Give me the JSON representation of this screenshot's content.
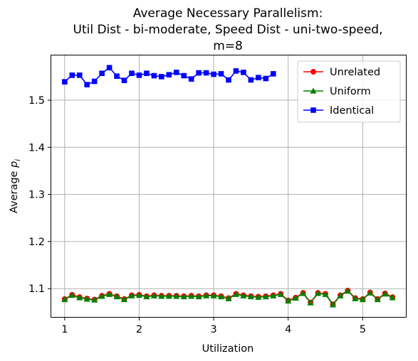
{
  "chart_data": {
    "type": "line",
    "title_lines": [
      "Average Necessary Parallelism:",
      "Util Dist - bi-moderate, Speed Dist - uni-two-speed,",
      "m=8"
    ],
    "xlabel": "Utilization",
    "ylabel_main": "Average ",
    "ylabel_sub": "p",
    "ylabel_subscript": "i",
    "xlim": [
      0.82,
      5.58
    ],
    "ylim": [
      1.04,
      1.595
    ],
    "xticks": [
      1,
      2,
      3,
      4,
      5
    ],
    "xtick_labels": [
      "1",
      "2",
      "3",
      "4",
      "5"
    ],
    "yticks": [
      1.1,
      1.2,
      1.3,
      1.4,
      1.5
    ],
    "ytick_labels": [
      "1.1",
      "1.2",
      "1.3",
      "1.4",
      "1.5"
    ],
    "grid": true,
    "legend_position": "top-right",
    "series": [
      {
        "name": "Unrelated",
        "color": "#ff0000",
        "marker": "circle",
        "x": [
          1.0,
          1.1,
          1.2,
          1.3,
          1.4,
          1.5,
          1.6,
          1.7,
          1.8,
          1.9,
          2.0,
          2.1,
          2.2,
          2.3,
          2.4,
          2.5,
          2.6,
          2.7,
          2.8,
          2.9,
          3.0,
          3.1,
          3.2,
          3.3,
          3.4,
          3.5,
          3.6,
          3.7,
          3.8,
          3.9,
          4.0,
          4.1,
          4.2,
          4.3,
          4.4,
          4.5,
          4.6,
          4.7,
          4.8,
          4.9,
          5.0,
          5.1,
          5.2,
          5.3,
          5.4
        ],
        "values": [
          1.078,
          1.087,
          1.082,
          1.079,
          1.077,
          1.085,
          1.089,
          1.084,
          1.078,
          1.086,
          1.087,
          1.084,
          1.086,
          1.085,
          1.085,
          1.085,
          1.084,
          1.085,
          1.084,
          1.086,
          1.086,
          1.084,
          1.08,
          1.089,
          1.086,
          1.084,
          1.083,
          1.084,
          1.086,
          1.089,
          1.075,
          1.081,
          1.091,
          1.071,
          1.091,
          1.089,
          1.067,
          1.086,
          1.096,
          1.08,
          1.078,
          1.092,
          1.078,
          1.09,
          1.082
        ]
      },
      {
        "name": "Uniform",
        "color": "#008000",
        "marker": "triangle",
        "x": [
          1.0,
          1.1,
          1.2,
          1.3,
          1.4,
          1.5,
          1.6,
          1.7,
          1.8,
          1.9,
          2.0,
          2.1,
          2.2,
          2.3,
          2.4,
          2.5,
          2.6,
          2.7,
          2.8,
          2.9,
          3.0,
          3.1,
          3.2,
          3.3,
          3.4,
          3.5,
          3.6,
          3.7,
          3.8,
          3.9,
          4.0,
          4.1,
          4.2,
          4.3,
          4.4,
          4.5,
          4.6,
          4.7,
          4.8,
          4.9,
          5.0,
          5.1,
          5.2,
          5.3,
          5.4
        ],
        "values": [
          1.077,
          1.086,
          1.081,
          1.078,
          1.076,
          1.084,
          1.088,
          1.083,
          1.077,
          1.085,
          1.086,
          1.083,
          1.085,
          1.084,
          1.084,
          1.084,
          1.083,
          1.084,
          1.083,
          1.085,
          1.085,
          1.083,
          1.079,
          1.088,
          1.085,
          1.083,
          1.082,
          1.083,
          1.085,
          1.088,
          1.074,
          1.08,
          1.09,
          1.07,
          1.09,
          1.088,
          1.066,
          1.085,
          1.095,
          1.079,
          1.077,
          1.091,
          1.077,
          1.089,
          1.081
        ]
      },
      {
        "name": "Identical",
        "color": "#0000ff",
        "marker": "square",
        "x": [
          1.0,
          1.1,
          1.2,
          1.3,
          1.4,
          1.5,
          1.6,
          1.7,
          1.8,
          1.9,
          2.0,
          2.1,
          2.2,
          2.3,
          2.4,
          2.5,
          2.6,
          2.7,
          2.8,
          2.9,
          3.0,
          3.1,
          3.2,
          3.3,
          3.4,
          3.5,
          3.6,
          3.7,
          3.8
        ],
        "values": [
          1.539,
          1.553,
          1.553,
          1.533,
          1.54,
          1.557,
          1.569,
          1.551,
          1.542,
          1.557,
          1.553,
          1.557,
          1.552,
          1.55,
          1.554,
          1.559,
          1.552,
          1.545,
          1.558,
          1.558,
          1.555,
          1.556,
          1.543,
          1.562,
          1.559,
          1.543,
          1.548,
          1.546,
          1.556
        ]
      }
    ]
  }
}
